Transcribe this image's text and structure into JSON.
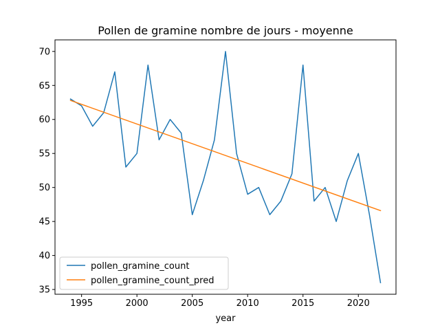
{
  "chart_data": {
    "type": "line",
    "title": "Pollen de gramine nombre de jours - moyenne",
    "xlabel": "year",
    "ylabel": "",
    "xlim": [
      1992.6,
      2023.4
    ],
    "ylim": [
      34.3,
      71.7
    ],
    "xticks": [
      1995,
      2000,
      2005,
      2010,
      2015,
      2020
    ],
    "yticks": [
      35,
      40,
      45,
      50,
      55,
      60,
      65,
      70
    ],
    "grid": false,
    "legend_position": "lower-left",
    "x": [
      1994,
      1995,
      1996,
      1997,
      1998,
      1999,
      2000,
      2001,
      2002,
      2003,
      2004,
      2005,
      2006,
      2007,
      2008,
      2009,
      2010,
      2011,
      2012,
      2013,
      2014,
      2015,
      2016,
      2017,
      2018,
      2019,
      2020,
      2021,
      2022
    ],
    "series": [
      {
        "name": "pollen_gramine_count",
        "color": "#1f77b4",
        "values": [
          63,
          62,
          59,
          61,
          67,
          53,
          55,
          68,
          57,
          60,
          58,
          46,
          51,
          57,
          70,
          55,
          49,
          50,
          46,
          48,
          52,
          68,
          48,
          50,
          45,
          51,
          55,
          46,
          36
        ]
      },
      {
        "name": "pollen_gramine_count_pred",
        "color": "#ff7f0e",
        "x": [
          1994,
          2022
        ],
        "values": [
          62.8,
          46.6
        ]
      }
    ]
  }
}
